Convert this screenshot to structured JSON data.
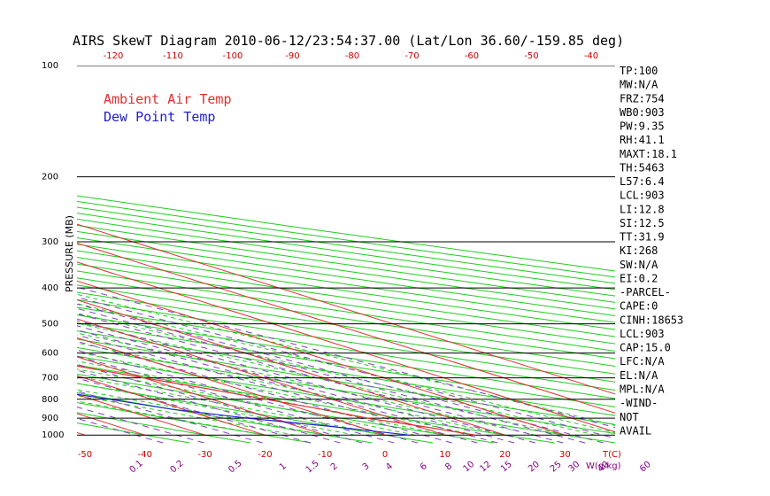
{
  "chart_data": {
    "type": "line",
    "title": "AIRS SkewT Diagram 2010-06-12/23:54:37.00 (Lat/Lon 36.60/-159.85 deg)",
    "ylabel": "PRESSURE (MB)",
    "xlabel": "T(C)",
    "mixing_ratio_unit": "W(g/kg)",
    "pressure_levels": [
      100,
      200,
      300,
      400,
      500,
      600,
      700,
      800,
      900,
      1000
    ],
    "top_temp_ticks": [
      -120,
      -110,
      -100,
      -90,
      -80,
      -70,
      -60,
      -50,
      -40
    ],
    "bottom_temp_ticks": [
      -50,
      -40,
      -30,
      -20,
      -10,
      0,
      10,
      20,
      30
    ],
    "mixing_ratio_ticks": [
      "0.1",
      "0.2",
      "0.5",
      "1",
      "1.5",
      "2",
      "3",
      "4",
      "6",
      "8",
      "10",
      "12",
      "15",
      "20",
      "25",
      "30",
      "40",
      "60"
    ],
    "legend": [
      {
        "name": "Ambient Air Temp",
        "color": "#e03030"
      },
      {
        "name": "Dew Point Temp",
        "color": "#2020cc"
      }
    ],
    "series": [
      {
        "name": "Ambient Air Temp",
        "color": "#e03030",
        "points": [
          {
            "p": 100,
            "t": -65
          },
          {
            "p": 115,
            "t": -67
          },
          {
            "p": 130,
            "t": -69
          },
          {
            "p": 150,
            "t": -71
          },
          {
            "p": 170,
            "t": -73
          },
          {
            "p": 190,
            "t": -74
          },
          {
            "p": 200,
            "t": -75
          },
          {
            "p": 220,
            "t": -75
          },
          {
            "p": 250,
            "t": -73
          },
          {
            "p": 280,
            "t": -70
          },
          {
            "p": 300,
            "t": -67
          },
          {
            "p": 350,
            "t": -59
          },
          {
            "p": 400,
            "t": -51
          },
          {
            "p": 450,
            "t": -43
          },
          {
            "p": 500,
            "t": -34
          },
          {
            "p": 550,
            "t": -27
          },
          {
            "p": 600,
            "t": -21
          },
          {
            "p": 650,
            "t": -15
          },
          {
            "p": 700,
            "t": -10
          },
          {
            "p": 750,
            "t": -5
          },
          {
            "p": 800,
            "t": -1
          },
          {
            "p": 850,
            "t": 3
          },
          {
            "p": 900,
            "t": 6
          },
          {
            "p": 950,
            "t": 11
          },
          {
            "p": 1000,
            "t": 15
          }
        ]
      },
      {
        "name": "Dew Point Temp",
        "color": "#2020cc",
        "points": [
          {
            "p": 100,
            "t": -102
          },
          {
            "p": 115,
            "t": -103
          },
          {
            "p": 130,
            "t": -104
          },
          {
            "p": 150,
            "t": -105
          },
          {
            "p": 170,
            "t": -106
          },
          {
            "p": 190,
            "t": -107
          },
          {
            "p": 200,
            "t": -108
          },
          {
            "p": 220,
            "t": -110
          },
          {
            "p": 250,
            "t": -115
          },
          {
            "p": 280,
            "t": -108
          },
          {
            "p": 300,
            "t": -104
          },
          {
            "p": 350,
            "t": -88
          },
          {
            "p": 400,
            "t": -73
          },
          {
            "p": 450,
            "t": -59
          },
          {
            "p": 500,
            "t": -43
          },
          {
            "p": 550,
            "t": -40
          },
          {
            "p": 600,
            "t": -37
          },
          {
            "p": 650,
            "t": -37
          },
          {
            "p": 700,
            "t": -38
          },
          {
            "p": 750,
            "t": -33
          },
          {
            "p": 800,
            "t": -27
          },
          {
            "p": 850,
            "t": -22
          },
          {
            "p": 900,
            "t": -14
          },
          {
            "p": 950,
            "t": -4
          },
          {
            "p": 1000,
            "t": 4
          }
        ]
      }
    ],
    "indices": [
      "TP:100",
      "MW:N/A",
      "FRZ:754",
      "WB0:903",
      "PW:9.35",
      "RH:41.1",
      "MAXT:18.1",
      "TH:5463",
      "L57:6.4",
      "LCL:903",
      "LI:12.8",
      "SI:12.5",
      "TT:31.9",
      "KI:268",
      "SW:N/A",
      "EI:0.2",
      "-PARCEL-",
      "CAPE:0",
      "CINH:18653",
      "LCL:903",
      "CAP:15.0",
      "LFC:N/A",
      "EL:N/A",
      "MPL:N/A",
      "-WIND-",
      "NOT",
      "AVAIL"
    ]
  }
}
